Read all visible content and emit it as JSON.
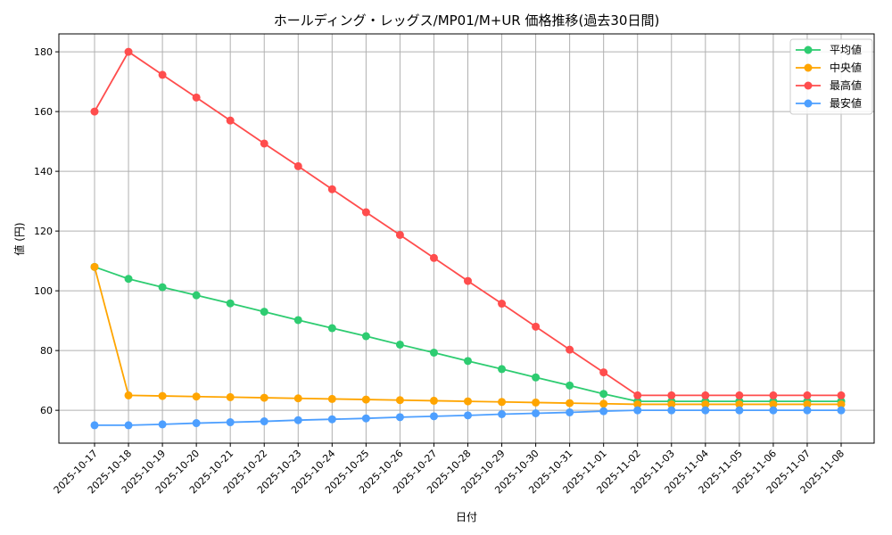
{
  "chart_data": {
    "type": "line",
    "title": "ホールディング・レッグス/MP01/M+UR 価格推移(過去30日間)",
    "xlabel": "日付",
    "ylabel": "値 (円)",
    "ylim": [
      49,
      186
    ],
    "yticks": [
      60,
      80,
      100,
      120,
      140,
      160,
      180
    ],
    "grid": true,
    "legend_placement": "top-right",
    "x": [
      "2025-10-17",
      "2025-10-18",
      "2025-10-19",
      "2025-10-20",
      "2025-10-21",
      "2025-10-22",
      "2025-10-23",
      "2025-10-24",
      "2025-10-25",
      "2025-10-26",
      "2025-10-27",
      "2025-10-28",
      "2025-10-29",
      "2025-10-30",
      "2025-10-31",
      "2025-11-01",
      "2025-11-02",
      "2025-11-03",
      "2025-11-04",
      "2025-11-05",
      "2025-11-06",
      "2025-11-07",
      "2025-11-08"
    ],
    "series": [
      {
        "name": "平均値",
        "color": "#2ecc71",
        "values": [
          108,
          104,
          101.2,
          98.5,
          95.8,
          93,
          90.2,
          87.5,
          84.8,
          82,
          79.3,
          76.5,
          73.8,
          71,
          68.3,
          65.5,
          63,
          63,
          63,
          63,
          63,
          63,
          63
        ]
      },
      {
        "name": "中央値",
        "color": "#ffa500",
        "values": [
          108,
          65,
          64.8,
          64.6,
          64.4,
          64.2,
          64,
          63.8,
          63.6,
          63.4,
          63.2,
          63,
          62.8,
          62.6,
          62.4,
          62.2,
          62,
          62,
          62,
          62,
          62,
          62,
          62
        ]
      },
      {
        "name": "最高値",
        "color": "#ff4d4d",
        "values": [
          160,
          180,
          172.3,
          164.7,
          157,
          149.3,
          141.7,
          134,
          126.3,
          118.7,
          111,
          103.3,
          95.7,
          88,
          80.3,
          72.7,
          65,
          65,
          65,
          65,
          65,
          65,
          65
        ]
      },
      {
        "name": "最安値",
        "color": "#4d9fff",
        "values": [
          55,
          55,
          55.3,
          55.7,
          56,
          56.3,
          56.7,
          57,
          57.3,
          57.7,
          58,
          58.3,
          58.7,
          59,
          59.3,
          59.7,
          60,
          60,
          60,
          60,
          60,
          60,
          60
        ]
      }
    ]
  }
}
